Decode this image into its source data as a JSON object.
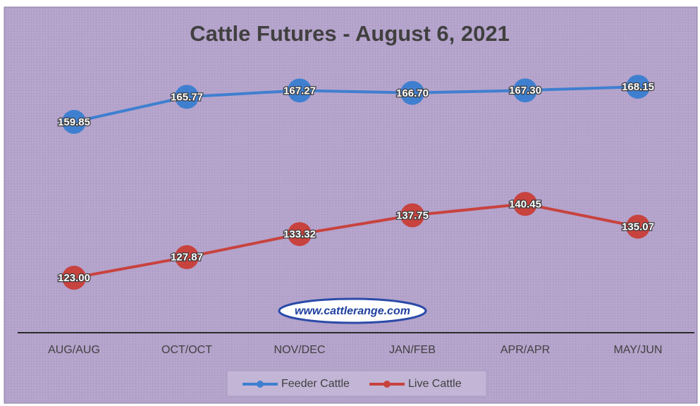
{
  "chart_data": {
    "type": "line",
    "title": "Cattle Futures - August 6, 2021",
    "categories": [
      "AUG/AUG",
      "OCT/OCT",
      "NOV/DEC",
      "JAN/FEB",
      "APR/APR",
      "MAY/JUN"
    ],
    "series": [
      {
        "name": "Feeder Cattle",
        "color": "#3f7fd0",
        "values": [
          159.85,
          165.77,
          167.27,
          166.7,
          167.3,
          168.15
        ],
        "value_labels": [
          "159.85",
          "165.77",
          "167.27",
          "166.70",
          "167.30",
          "168.15"
        ]
      },
      {
        "name": "Live Cattle",
        "color": "#c8423e",
        "values": [
          123.0,
          127.87,
          133.32,
          137.75,
          140.45,
          135.07
        ],
        "value_labels": [
          "123.00",
          "127.87",
          "133.32",
          "137.75",
          "140.45",
          "135.07"
        ]
      }
    ],
    "ylim": [
      110,
      180
    ],
    "annotation": "www.cattlerange.com",
    "legend": "bottom"
  }
}
